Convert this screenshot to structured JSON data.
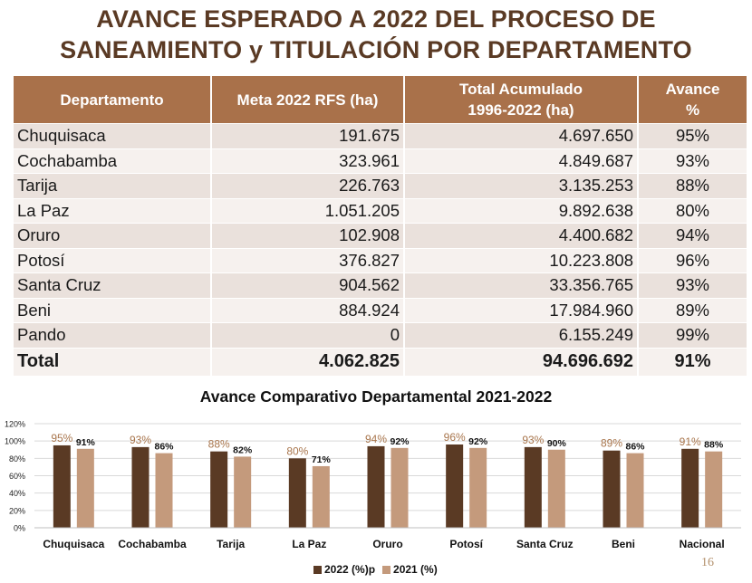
{
  "title_line1": "AVANCE ESPERADO A 2022 DEL PROCESO DE",
  "title_line2": "SANEAMIENTO y TITULACIÓN POR DEPARTAMENTO",
  "table": {
    "headers": [
      "Departamento",
      "Meta 2022 RFS  (ha)",
      "Total Acumulado",
      "1996-2022 (ha)",
      "Avance",
      "%"
    ],
    "rows": [
      [
        "Chuquisaca",
        "191.675",
        "4.697.650",
        "95%"
      ],
      [
        "Cochabamba",
        "323.961",
        "4.849.687",
        "93%"
      ],
      [
        "Tarija",
        "226.763",
        "3.135.253",
        "88%"
      ],
      [
        "La Paz",
        "1.051.205",
        "9.892.638",
        "80%"
      ],
      [
        "Oruro",
        "102.908",
        "4.400.682",
        "94%"
      ],
      [
        "Potosí",
        "376.827",
        "10.223.808",
        "96%"
      ],
      [
        "Santa Cruz",
        "904.562",
        "33.356.765",
        "93%"
      ],
      [
        "Beni",
        "884.924",
        "17.984.960",
        "89%"
      ],
      [
        "Pando",
        "0",
        "6.155.249",
        "99%"
      ]
    ],
    "total": [
      "Total",
      "4.062.825",
      "94.696.692",
      "91%"
    ]
  },
  "chart_data": {
    "type": "bar",
    "title": "Avance Comparativo Departamental  2021-2022",
    "categories": [
      "Chuquisaca",
      "Cochabamba",
      "Tarija",
      "La Paz",
      "Oruro",
      "Potosí",
      "Santa Cruz",
      "Beni",
      "Nacional"
    ],
    "series": [
      {
        "name": "2022 (%)p",
        "values": [
          95,
          93,
          88,
          80,
          94,
          96,
          93,
          89,
          91
        ],
        "labels": [
          "95%",
          "93%",
          "88%",
          "80%",
          "94%",
          "96%",
          "93%",
          "89%",
          "91%"
        ],
        "color": "#5a3a24"
      },
      {
        "name": "2021 (%)",
        "values": [
          91,
          86,
          82,
          71,
          92,
          92,
          90,
          86,
          88
        ],
        "labels": [
          "91%",
          "86%",
          "82%",
          "71%",
          "92%",
          "92%",
          "90%",
          "86%",
          "88%"
        ],
        "color": "#c49a7c"
      }
    ],
    "y_ticks": [
      "0%",
      "20%",
      "40%",
      "60%",
      "80%",
      "100%",
      "120%"
    ],
    "ylim": [
      0,
      120
    ],
    "grid": true,
    "legend": "bottom"
  },
  "page_number": "16"
}
